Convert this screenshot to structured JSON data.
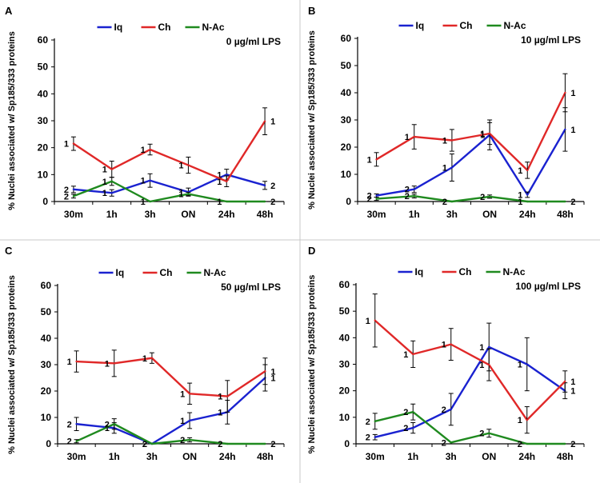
{
  "colors": {
    "Iq": "#1a22d0",
    "Ch": "#e02828",
    "N-Ac": "#1f8a1f",
    "axis": "#000000"
  },
  "chart_data": [
    {
      "type": "line",
      "panel_label": "A",
      "title": "0 µg/ml LPS",
      "xlabel": "",
      "ylabel": "% Nuclei associated w/ Sp185/333 proteins",
      "categories": [
        "30m",
        "1h",
        "3h",
        "ON",
        "24h",
        "48h"
      ],
      "ylim": [
        0,
        60
      ],
      "yticks": [
        0,
        10,
        20,
        30,
        40,
        50,
        60
      ],
      "legend": "top-center",
      "series": [
        {
          "name": "Iq",
          "values": [
            4.5,
            3.2,
            7.8,
            3.5,
            10.0,
            6.0
          ],
          "errors": [
            1.2,
            1.2,
            2.5,
            1.5,
            2.0,
            1.5
          ],
          "labels": [
            "2",
            "1",
            "1",
            "1",
            "1",
            "2"
          ]
        },
        {
          "name": "Ch",
          "values": [
            21.5,
            12.0,
            19.3,
            13.5,
            7.5,
            29.8
          ],
          "errors": [
            2.5,
            3.0,
            2.0,
            3.0,
            2.0,
            5.0
          ],
          "labels": [
            "1",
            "1",
            "1",
            "1",
            "1",
            "1"
          ]
        },
        {
          "name": "N-Ac",
          "values": [
            2.0,
            7.5,
            0.0,
            2.8,
            0.0,
            0.0
          ],
          "errors": [
            0.7,
            1.5,
            0,
            0.6,
            0,
            0
          ],
          "labels": [
            "2",
            "1",
            "1",
            "1",
            "1",
            "2"
          ]
        }
      ]
    },
    {
      "type": "line",
      "panel_label": "B",
      "title": "10 µg/ml LPS",
      "xlabel": "",
      "ylabel": "% Nuclei associated w/ Sp185/333 proteins",
      "categories": [
        "30m",
        "1h",
        "3h",
        "ON",
        "24h",
        "48h"
      ],
      "ylim": [
        0,
        60
      ],
      "yticks": [
        0,
        10,
        20,
        30,
        40,
        50,
        60
      ],
      "legend": "top-center",
      "series": [
        {
          "name": "Iq",
          "values": [
            2.2,
            4.5,
            12.5,
            24.5,
            2.5,
            26.5
          ],
          "errors": [
            0.6,
            1.2,
            5.0,
            5.5,
            1.0,
            8.0
          ],
          "labels": [
            "2",
            "2",
            "1",
            "1",
            "1",
            "1"
          ]
        },
        {
          "name": "Ch",
          "values": [
            15.5,
            23.8,
            22.5,
            25.0,
            11.5,
            40.0
          ],
          "errors": [
            2.5,
            4.5,
            4.0,
            4.0,
            3.0,
            7.0
          ],
          "labels": [
            "1",
            "1",
            "1",
            "1",
            "1",
            "1"
          ]
        },
        {
          "name": "N-Ac",
          "values": [
            1.0,
            2.0,
            0.0,
            1.8,
            0.0,
            0.0
          ],
          "errors": [
            0.6,
            0.7,
            0,
            0.6,
            0,
            0
          ],
          "labels": [
            "2",
            "2",
            "2",
            "2",
            "1",
            "2"
          ]
        }
      ]
    },
    {
      "type": "line",
      "panel_label": "C",
      "title": "50 µg/ml LPS",
      "xlabel": "",
      "ylabel": "% Nuclei associated w/ Sp185/333 proteins",
      "categories": [
        "30m",
        "1h",
        "3h",
        "ON",
        "24h",
        "48h"
      ],
      "ylim": [
        0,
        60
      ],
      "yticks": [
        0,
        10,
        20,
        30,
        40,
        50,
        60
      ],
      "legend": "top-center",
      "series": [
        {
          "name": "Iq",
          "values": [
            7.5,
            6.0,
            0.0,
            8.8,
            12.0,
            25.0
          ],
          "errors": [
            2.5,
            2.0,
            0,
            3.0,
            4.5,
            5.0
          ],
          "labels": [
            "2",
            "1",
            "2",
            "1",
            "1",
            "1"
          ]
        },
        {
          "name": "Ch",
          "values": [
            31.2,
            30.5,
            32.5,
            19.0,
            18.0,
            27.5
          ],
          "errors": [
            4.0,
            5.0,
            2.0,
            4.0,
            6.0,
            5.0
          ],
          "labels": [
            "1",
            "1",
            "1",
            "1",
            "1",
            "1"
          ]
        },
        {
          "name": "N-Ac",
          "values": [
            1.0,
            7.5,
            0.0,
            1.5,
            0.0,
            0.0
          ],
          "errors": [
            0.6,
            2.0,
            0,
            0.8,
            0,
            0
          ],
          "labels": [
            "2",
            "2",
            "2",
            "2",
            "2",
            "2"
          ]
        }
      ]
    },
    {
      "type": "line",
      "panel_label": "D",
      "title": "100 µg/ml LPS",
      "xlabel": "",
      "ylabel": "% Nuclei associated w/ Sp185/333 proteins",
      "categories": [
        "30m",
        "1h",
        "3h",
        "ON",
        "24h",
        "48h"
      ],
      "ylim": [
        0,
        60
      ],
      "yticks": [
        0,
        10,
        20,
        30,
        40,
        50,
        60
      ],
      "legend": "top-center",
      "series": [
        {
          "name": "Iq",
          "values": [
            2.5,
            6.0,
            13.0,
            36.5,
            30.0,
            20.0
          ],
          "errors": [
            1.0,
            2.0,
            6.0,
            9.0,
            10.0,
            3.0
          ],
          "labels": [
            "2",
            "2",
            "2",
            "1",
            "1",
            "1"
          ]
        },
        {
          "name": "Ch",
          "values": [
            46.5,
            33.8,
            37.5,
            29.8,
            9.0,
            23.5
          ],
          "errors": [
            10.0,
            5.0,
            6.0,
            6.0,
            5.0,
            4.0
          ],
          "labels": [
            "1",
            "1",
            "1",
            "1",
            "1",
            "1"
          ]
        },
        {
          "name": "N-Ac",
          "values": [
            8.5,
            12.0,
            0.5,
            4.0,
            0.0,
            0.0
          ],
          "errors": [
            3.0,
            3.0,
            0,
            1.5,
            0,
            0
          ],
          "labels": [
            "2",
            "2",
            "2",
            "2",
            "2",
            "2"
          ]
        }
      ]
    }
  ]
}
